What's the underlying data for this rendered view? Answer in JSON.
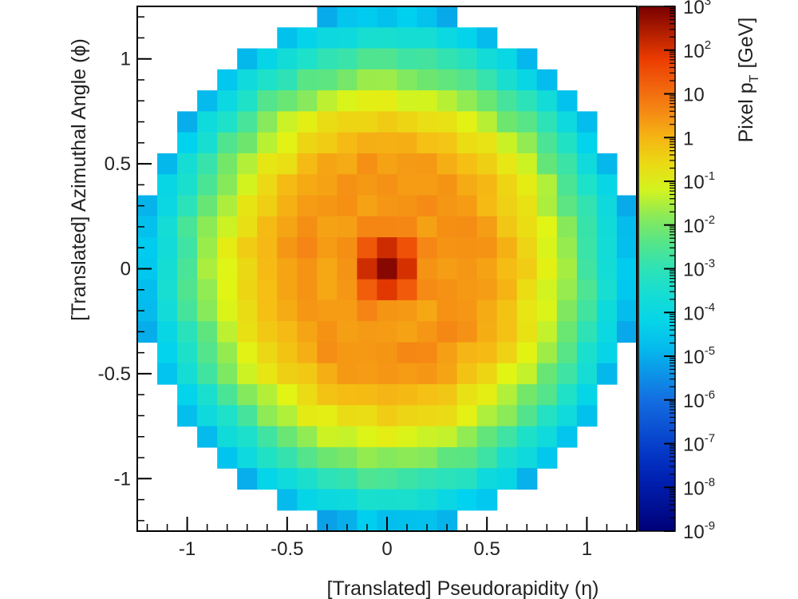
{
  "chart_data": {
    "type": "heatmap",
    "title": "",
    "xlabel": "[Translated] Pseudorapidity (η)",
    "ylabel": "[Translated] Azimuthal Angle (ϕ)",
    "colorbar_label": "Pixel p_T [GeV]",
    "colorbar_label_parts": {
      "main": "Pixel p",
      "sub": "T",
      "unit": "[GeV]"
    },
    "xlim": [
      -1.25,
      1.25
    ],
    "ylim": [
      -1.25,
      1.25
    ],
    "bins_per_axis": 25,
    "grid": false,
    "scale": "log",
    "xticks": [
      -1,
      -0.5,
      0,
      0.5,
      1
    ],
    "xtick_labels": [
      "-1",
      "-0.5",
      "0",
      "0.5",
      "1"
    ],
    "yticks": [
      -1,
      -0.5,
      0,
      0.5,
      1
    ],
    "ytick_labels": [
      "-1",
      "-0.5",
      "0",
      "0.5",
      "1"
    ],
    "colorbar_exponents": [
      -9,
      -8,
      -7,
      -6,
      -5,
      -4,
      -3,
      -2,
      -1,
      0,
      1,
      2,
      3
    ],
    "colorbar_labels": [
      "10",
      "10",
      "10",
      "10",
      "10",
      "10",
      "10",
      "10",
      "10",
      "1",
      "10",
      "10",
      "10"
    ],
    "colorbar_label_exponents": [
      "-9",
      "-8",
      "-7",
      "-6",
      "-5",
      "-4",
      "-3",
      "-2",
      "-1",
      "",
      "",
      "2",
      "3"
    ],
    "zlim_log10": [
      -9,
      3
    ],
    "z_log10_by_radius": [
      {
        "r_bins": 0,
        "value": 3.0
      },
      {
        "r_bins": 1,
        "value": 2.0
      },
      {
        "r_bins": 1.5,
        "value": 1.3
      },
      {
        "r_bins": 2,
        "value": 0.6
      },
      {
        "r_bins": 3,
        "value": 0.3
      },
      {
        "r_bins": 4,
        "value": 0.5
      },
      {
        "r_bins": 5,
        "value": 0.4
      },
      {
        "r_bins": 6,
        "value": 0.0
      },
      {
        "r_bins": 7,
        "value": -0.5
      },
      {
        "r_bins": 8,
        "value": -1.0
      },
      {
        "r_bins": 9,
        "value": -1.7
      },
      {
        "r_bins": 10,
        "value": -2.6
      },
      {
        "r_bins": 11,
        "value": -3.5
      },
      {
        "r_bins": 12,
        "value": -4.6
      },
      {
        "r_bins": 12.8,
        "value": -5.6
      }
    ],
    "circle_radius_bins": 12.4
  }
}
